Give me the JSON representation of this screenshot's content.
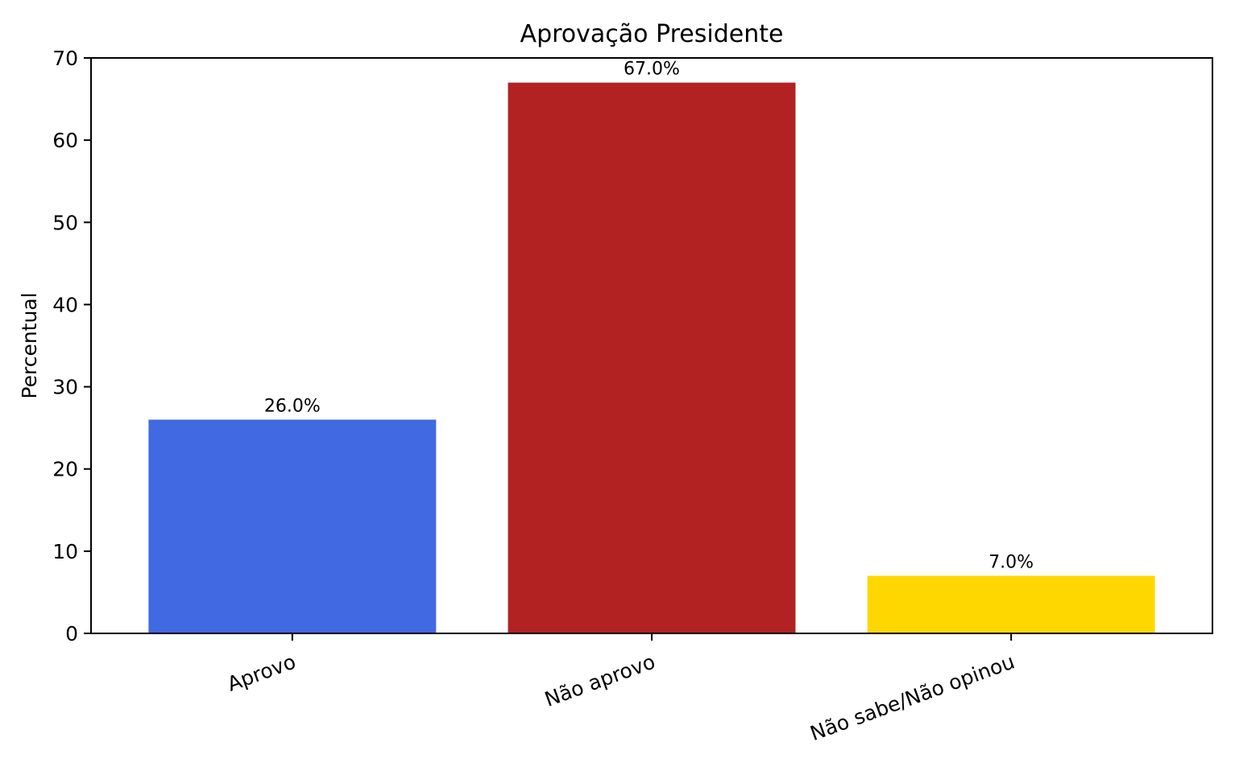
{
  "chart_data": {
    "type": "bar",
    "title": "Aprovação Presidente",
    "xlabel": "",
    "ylabel": "Percentual",
    "categories": [
      "Aprovo",
      "Não aprovo",
      "Não sabe/Não opinou"
    ],
    "values": [
      26.0,
      67.0,
      7.0
    ],
    "value_labels": [
      "26.0%",
      "67.0%",
      "7.0%"
    ],
    "bar_colors": [
      "#4169E1",
      "#B22222",
      "#FFD700"
    ],
    "ylim": [
      0,
      70
    ],
    "yticks": [
      0,
      10,
      20,
      30,
      40,
      50,
      60,
      70
    ],
    "grid": false,
    "legend": false,
    "x_tick_rotation_deg": 20,
    "spine_color": "#000000",
    "background_color": "#ffffff"
  }
}
